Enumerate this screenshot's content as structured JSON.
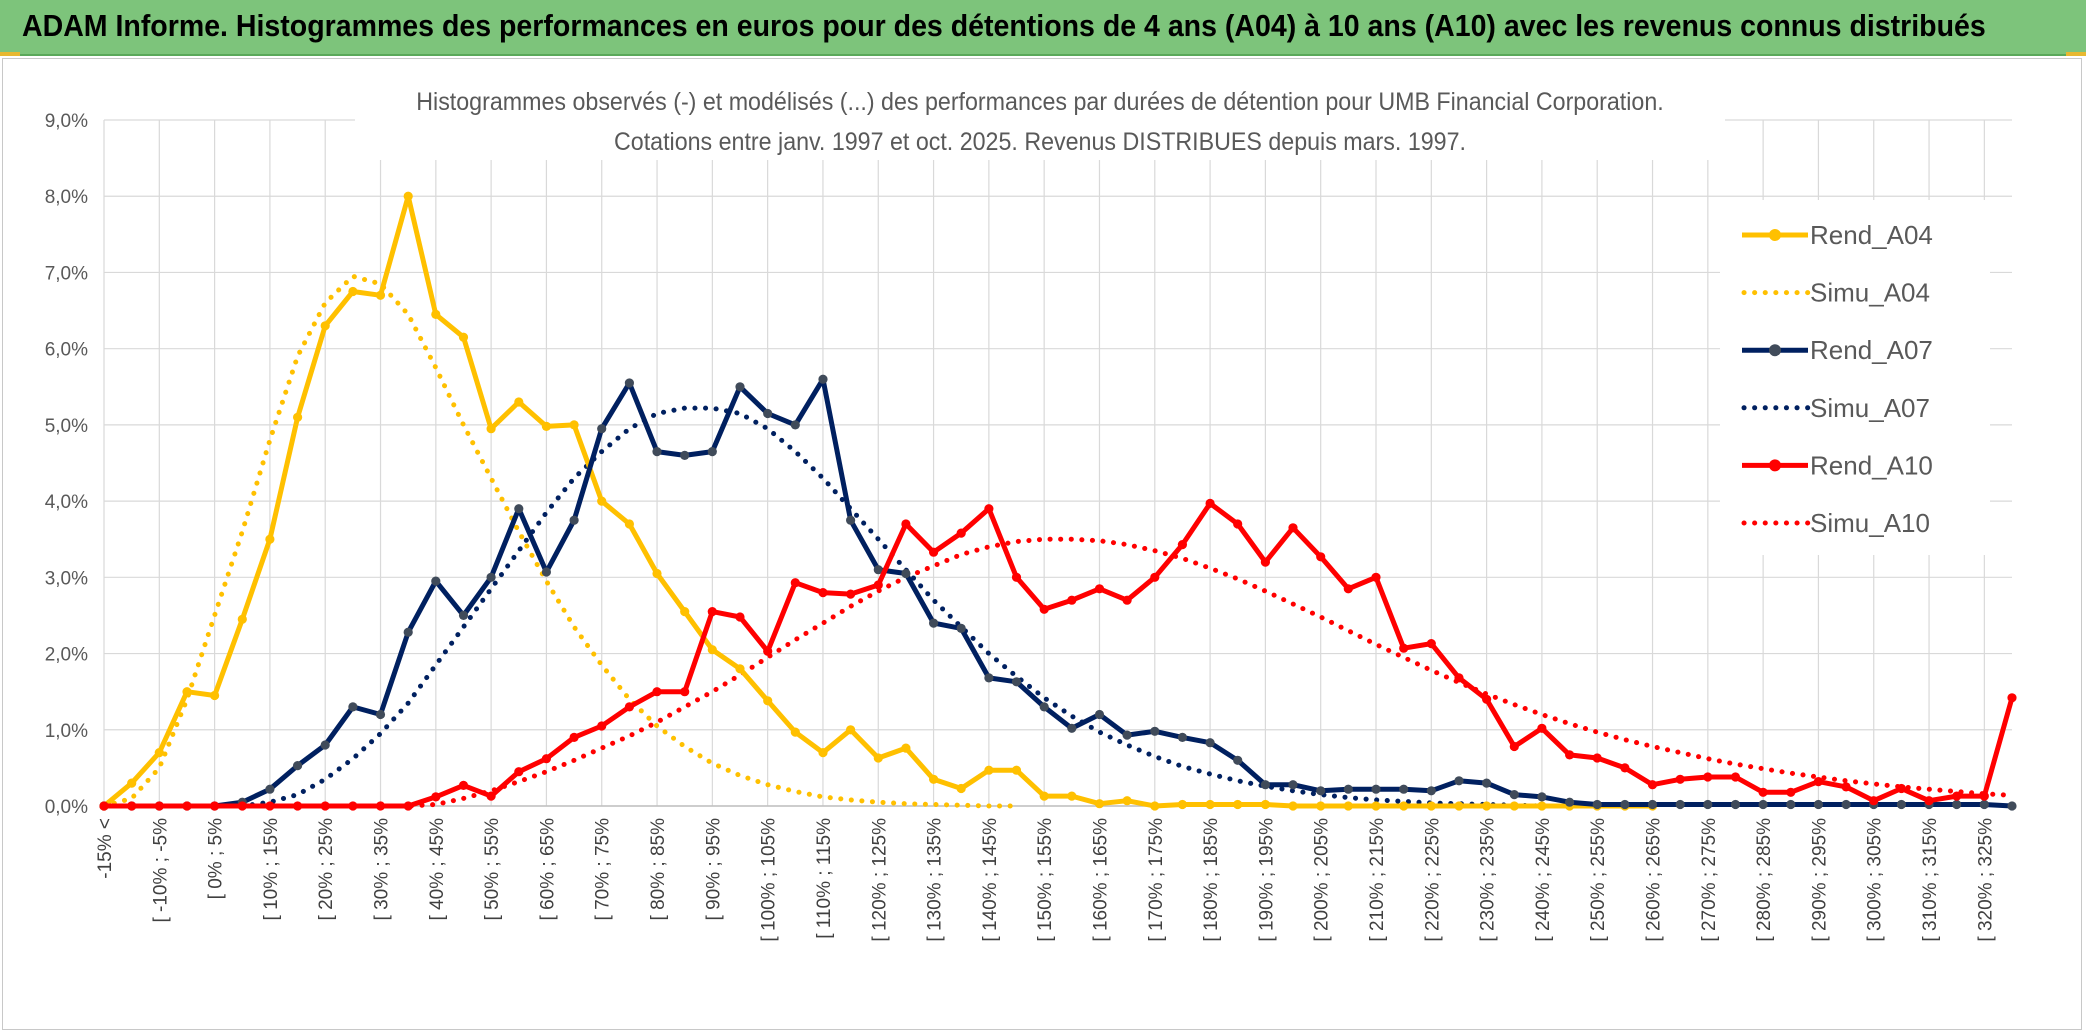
{
  "banner": {
    "title": "ADAM Informe. Histogrammes des performances en euros pour des détentions de 4 ans (A04) à 10 ans (A10) avec les revenus connus distribués"
  },
  "chart_data": {
    "type": "line",
    "title": "Histogrammes observés (-) et modélisés (...) des performances par durées de détention pour UMB Financial Corporation.",
    "subtitle": "Cotations entre janv. 1997 et oct. 2025. Revenus DISTRIBUES depuis mars. 1997.",
    "ylim": [
      0,
      9
    ],
    "yticks": [
      "0,0%",
      "1,0%",
      "2,0%",
      "3,0%",
      "4,0%",
      "5,0%",
      "6,0%",
      "7,0%",
      "8,0%",
      "9,0%"
    ],
    "xtick_labels": [
      "-15% <",
      "[ -10% ; -5%",
      "[ 0% ; 5%",
      "[ 10% ; 15%",
      "[ 20% ; 25%",
      "[ 30% ; 35%",
      "[ 40% ; 45%",
      "[ 50% ; 55%",
      "[ 60% ; 65%",
      "[ 70% ; 75%",
      "[ 80% ; 85%",
      "[ 90% ; 95%",
      "[ 100% ; 105%",
      "[ 110% ; 115%",
      "[ 120% ; 125%",
      "[ 130% ; 135%",
      "[ 140% ; 145%",
      "[ 150% ; 155%",
      "[ 160% ; 165%",
      "[ 170% ; 175%",
      "[ 180% ; 185%",
      "[ 190% ; 195%",
      "[ 200% ; 205%",
      "[ 210% ; 215%",
      "[ 220% ; 225%",
      "[ 230% ; 235%",
      "[ 240% ; 245%",
      "[ 250% ; 255%",
      "[ 260% ; 265%",
      "[ 270% ; 275%",
      "[ 280% ; 285%",
      "[ 290% ; 295%",
      "[ 300% ; 305%",
      "[ 310% ; 315%",
      "[ 320% ; 325%"
    ],
    "grid": true,
    "legend_position": "right",
    "series": [
      {
        "name": "Rend_A04",
        "style": "solid",
        "color": "#ffc000",
        "marker_color": "#ffc000",
        "values": [
          0.0,
          0.3,
          0.7,
          1.5,
          1.45,
          2.45,
          3.5,
          5.1,
          6.3,
          6.75,
          6.7,
          8.0,
          6.45,
          6.15,
          4.95,
          5.3,
          4.98,
          5.0,
          4.0,
          3.7,
          3.05,
          2.55,
          2.05,
          1.8,
          1.38,
          0.97,
          0.7,
          1.0,
          0.63,
          0.76,
          0.35,
          0.23,
          0.47,
          0.47,
          0.13,
          0.13,
          0.03,
          0.07,
          0.0,
          0.02,
          0.02,
          0.02,
          0.02,
          0.0,
          0.0,
          0.0,
          0.0,
          0.0,
          0.0,
          0.0,
          0.0,
          0.0,
          0.0,
          0.0,
          0.0,
          0.0,
          0.0
        ]
      },
      {
        "name": "Simu_A04",
        "style": "dotted",
        "color": "#ffc000",
        "values": [
          0.0,
          0.1,
          0.5,
          1.4,
          2.5,
          3.6,
          4.8,
          5.9,
          6.6,
          6.95,
          6.85,
          6.45,
          5.75,
          5.0,
          4.3,
          3.6,
          2.95,
          2.35,
          1.85,
          1.4,
          1.05,
          0.78,
          0.56,
          0.4,
          0.28,
          0.19,
          0.12,
          0.08,
          0.05,
          0.03,
          0.02,
          0.01,
          0.0,
          0.0
        ]
      },
      {
        "name": "Rend_A07",
        "style": "solid",
        "color": "#002060",
        "marker_color": "#404b5a",
        "values": [
          0.0,
          0.0,
          0.0,
          0.0,
          0.0,
          0.05,
          0.22,
          0.53,
          0.8,
          1.3,
          1.2,
          2.28,
          2.95,
          2.5,
          3.0,
          3.9,
          3.07,
          3.75,
          4.95,
          5.55,
          4.65,
          4.6,
          4.65,
          5.5,
          5.15,
          5.0,
          5.6,
          3.75,
          3.1,
          3.05,
          2.4,
          2.33,
          1.68,
          1.63,
          1.3,
          1.02,
          1.2,
          0.93,
          0.98,
          0.9,
          0.83,
          0.6,
          0.28,
          0.28,
          0.2,
          0.22,
          0.22,
          0.22,
          0.2,
          0.33,
          0.3,
          0.15,
          0.12,
          0.05,
          0.02,
          0.02,
          0.02,
          0.02,
          0.02,
          0.02,
          0.02,
          0.02,
          0.02,
          0.02,
          0.02,
          0.02,
          0.02,
          0.02,
          0.02,
          0.0
        ]
      },
      {
        "name": "Simu_A07",
        "style": "dotted",
        "color": "#002060",
        "values": [
          0.0,
          0.0,
          0.0,
          0.0,
          0.0,
          0.0,
          0.05,
          0.15,
          0.35,
          0.62,
          0.95,
          1.35,
          1.85,
          2.35,
          2.85,
          3.35,
          3.85,
          4.3,
          4.65,
          4.95,
          5.15,
          5.22,
          5.22,
          5.15,
          4.95,
          4.65,
          4.3,
          3.9,
          3.5,
          3.1,
          2.7,
          2.35,
          2.0,
          1.7,
          1.42,
          1.18,
          0.97,
          0.8,
          0.65,
          0.52,
          0.42,
          0.33,
          0.26,
          0.2,
          0.15,
          0.11,
          0.08,
          0.06,
          0.04,
          0.03,
          0.02,
          0.01,
          0.0
        ]
      },
      {
        "name": "Rend_A10",
        "style": "solid",
        "color": "#ff0000",
        "marker_color": "#ff0000",
        "values": [
          0.0,
          0.0,
          0.0,
          0.0,
          0.0,
          0.0,
          0.0,
          0.0,
          0.0,
          0.0,
          0.0,
          0.0,
          0.12,
          0.27,
          0.13,
          0.45,
          0.62,
          0.9,
          1.05,
          1.3,
          1.5,
          1.5,
          2.55,
          2.48,
          2.03,
          2.93,
          2.8,
          2.78,
          2.9,
          3.7,
          3.33,
          3.58,
          3.9,
          3.0,
          2.58,
          2.7,
          2.85,
          2.7,
          3.0,
          3.43,
          3.97,
          3.7,
          3.2,
          3.65,
          3.27,
          2.85,
          3.0,
          2.07,
          2.13,
          1.68,
          1.4,
          0.78,
          1.02,
          0.67,
          0.63,
          0.5,
          0.28,
          0.35,
          0.38,
          0.38,
          0.18,
          0.18,
          0.32,
          0.25,
          0.07,
          0.23,
          0.07,
          0.13,
          0.13,
          1.42
        ]
      },
      {
        "name": "Simu_A10",
        "style": "dotted",
        "color": "#ff0000",
        "values": [
          0.0,
          0.0,
          0.0,
          0.0,
          0.0,
          0.0,
          0.0,
          0.0,
          0.0,
          0.0,
          0.0,
          0.0,
          0.02,
          0.1,
          0.2,
          0.32,
          0.45,
          0.6,
          0.76,
          0.92,
          1.1,
          1.3,
          1.5,
          1.72,
          1.95,
          2.18,
          2.4,
          2.62,
          2.82,
          3.0,
          3.15,
          3.3,
          3.4,
          3.47,
          3.5,
          3.5,
          3.48,
          3.43,
          3.35,
          3.25,
          3.12,
          2.98,
          2.82,
          2.65,
          2.48,
          2.3,
          2.12,
          1.95,
          1.78,
          1.62,
          1.47,
          1.33,
          1.2,
          1.08,
          0.97,
          0.87,
          0.78,
          0.7,
          0.62,
          0.55,
          0.49,
          0.43,
          0.38,
          0.33,
          0.29,
          0.25,
          0.22,
          0.19,
          0.16,
          0.14
        ]
      }
    ]
  }
}
